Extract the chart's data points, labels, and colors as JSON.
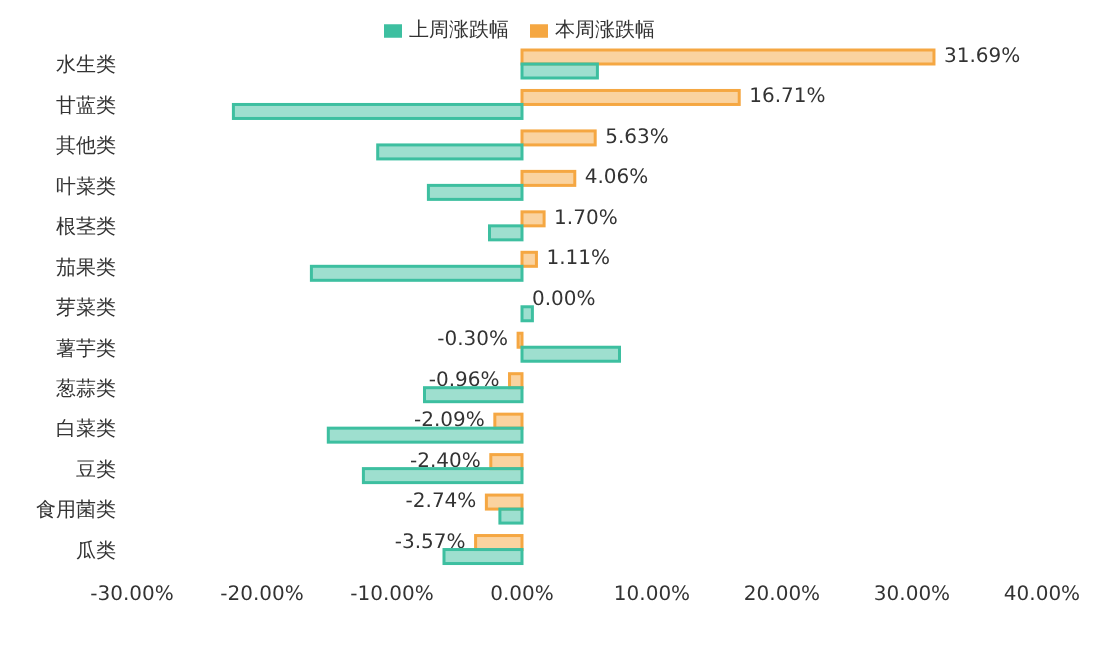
{
  "chart_data": {
    "type": "bar",
    "orientation": "horizontal",
    "categories": [
      "水生类",
      "甘蓝类",
      "其他类",
      "叶菜类",
      "根茎类",
      "茄果类",
      "芽菜类",
      "薯芋类",
      "葱蒜类",
      "白菜类",
      "豆类",
      "食用菌类",
      "瓜类"
    ],
    "series": [
      {
        "name": "本周涨跌幅",
        "color": "#f5a742",
        "values": [
          31.69,
          16.71,
          5.63,
          4.06,
          1.7,
          1.11,
          0.0,
          -0.3,
          -0.96,
          -2.09,
          -2.4,
          -2.74,
          -3.57
        ],
        "value_labels": [
          "31.69%",
          "16.71%",
          "5.63%",
          "4.06%",
          "1.70%",
          "1.11%",
          "0.00%",
          "-0.30%",
          "-0.96%",
          "-2.09%",
          "-2.40%",
          "-2.74%",
          "-3.57%"
        ]
      },
      {
        "name": "上周涨跌幅",
        "color": "#3dbfa0",
        "values": [
          5.8,
          -22.2,
          -11.1,
          -7.2,
          -2.5,
          -16.2,
          0.8,
          7.5,
          -7.5,
          -14.9,
          -12.2,
          -1.7,
          -6.0
        ]
      }
    ],
    "xlim": [
      -30,
      40
    ],
    "xticks": [
      {
        "value": -30,
        "label": "-30.00%"
      },
      {
        "value": -20,
        "label": "-20.00%"
      },
      {
        "value": -10,
        "label": "-10.00%"
      },
      {
        "value": 0,
        "label": "0.00%"
      },
      {
        "value": 10,
        "label": "10.00%"
      },
      {
        "value": 20,
        "label": "20.00%"
      },
      {
        "value": 30,
        "label": "30.00%"
      },
      {
        "value": 40,
        "label": "40.00%"
      }
    ],
    "grid": false,
    "legend": "top"
  }
}
